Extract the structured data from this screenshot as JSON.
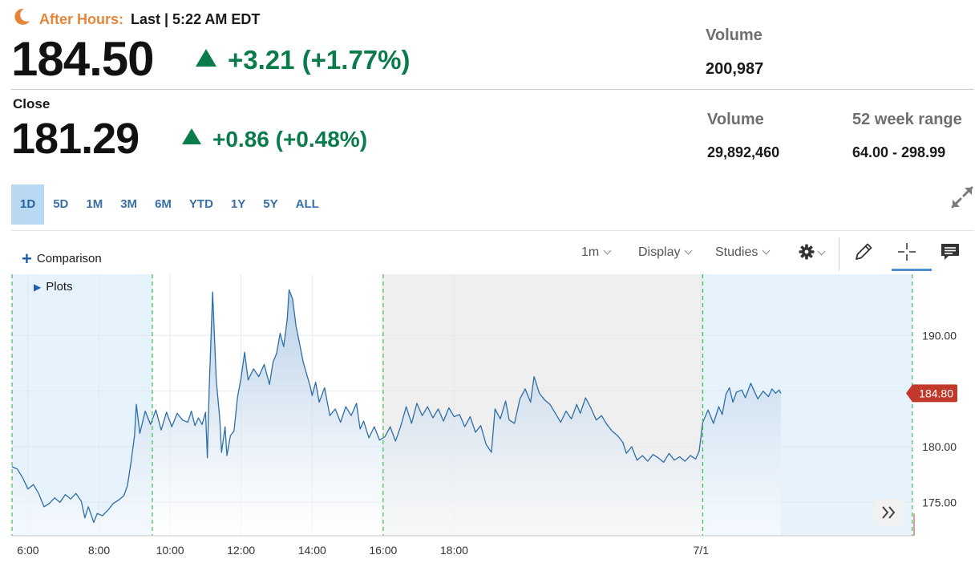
{
  "header": {
    "after_hours_label": "After Hours:",
    "last_time": "Last | 5:22 AM EDT",
    "after_hours_price": "184.50",
    "after_hours_change": "+3.21 (+1.77%)",
    "after_hours_volume_label": "Volume",
    "after_hours_volume": "200,987",
    "close_label": "Close",
    "close_price": "181.29",
    "close_change": "+0.86 (+0.48%)",
    "volume_label": "Volume",
    "volume": "29,892,460",
    "week52_label": "52 week range",
    "week52_range": "64.00 - 298.99",
    "icon": "moon-icon",
    "up_color": "#0a7b4b",
    "after_hours_color": "#e5853a"
  },
  "range_tabs": [
    "1D",
    "5D",
    "1M",
    "3M",
    "6M",
    "YTD",
    "1Y",
    "5Y",
    "ALL"
  ],
  "active_range": "1D",
  "toolbar": {
    "comparison": "Comparison",
    "interval": "1m",
    "display": "Display",
    "studies": "Studies",
    "icons": [
      "gear-icon",
      "pencil-icon",
      "crosshair-icon",
      "comment-icon",
      "expand-icon",
      "double-chevron-right-icon"
    ]
  },
  "plots_label": "Plots",
  "chart_data": {
    "type": "area",
    "x_tick_labels": [
      "6:00",
      "8:00",
      "10:00",
      "12:00",
      "14:00",
      "16:00",
      "18:00",
      "7/1"
    ],
    "y_tick_labels": [
      "190.00",
      "180.00",
      "175.00"
    ],
    "y_ticks": [
      190,
      180,
      175
    ],
    "ylim": [
      172.0,
      195.5
    ],
    "xlim": [
      5.55,
      30.95
    ],
    "current_price_label": "184.80",
    "current_price": 184.8,
    "line_color": "#2e6ea6",
    "label_color": "#c0392b",
    "session_markers": [
      5.55,
      9.5,
      16.0,
      25.0,
      30.9
    ],
    "shaded_sessions": [
      {
        "from": 5.55,
        "to": 9.5,
        "color": "#e6f2fc"
      },
      {
        "from": 16.0,
        "to": 25.0,
        "color": "#efefef"
      },
      {
        "from": 25.0,
        "to": 30.9,
        "color": "#e6f2fc"
      }
    ],
    "series": [
      {
        "points": [
          [
            5.55,
            178.2
          ],
          [
            5.7,
            178.0
          ],
          [
            5.85,
            177.2
          ],
          [
            6.0,
            176.2
          ],
          [
            6.15,
            176.6
          ],
          [
            6.3,
            175.8
          ],
          [
            6.45,
            174.6
          ],
          [
            6.6,
            174.9
          ],
          [
            6.75,
            175.4
          ],
          [
            6.9,
            175.0
          ],
          [
            7.05,
            175.7
          ],
          [
            7.2,
            175.3
          ],
          [
            7.35,
            175.8
          ],
          [
            7.5,
            175.1
          ],
          [
            7.6,
            173.6
          ],
          [
            7.7,
            174.6
          ],
          [
            7.85,
            173.2
          ],
          [
            7.95,
            174.0
          ],
          [
            8.1,
            173.8
          ],
          [
            8.25,
            174.3
          ],
          [
            8.4,
            174.9
          ],
          [
            8.55,
            175.2
          ],
          [
            8.7,
            175.6
          ],
          [
            8.8,
            176.5
          ],
          [
            8.9,
            178.6
          ],
          [
            9.0,
            181.0
          ],
          [
            9.05,
            183.8
          ],
          [
            9.15,
            181.2
          ],
          [
            9.3,
            183.2
          ],
          [
            9.45,
            182.0
          ],
          [
            9.6,
            183.3
          ],
          [
            9.75,
            181.5
          ],
          [
            9.9,
            183.1
          ],
          [
            10.05,
            181.8
          ],
          [
            10.2,
            183.0
          ],
          [
            10.35,
            182.4
          ],
          [
            10.5,
            182.2
          ],
          [
            10.6,
            183.2
          ],
          [
            10.7,
            181.9
          ],
          [
            10.8,
            182.6
          ],
          [
            10.9,
            182.0
          ],
          [
            11.0,
            183.1
          ],
          [
            11.05,
            179.0
          ],
          [
            11.1,
            185.0
          ],
          [
            11.2,
            193.9
          ],
          [
            11.3,
            186.0
          ],
          [
            11.4,
            182.5
          ],
          [
            11.45,
            179.5
          ],
          [
            11.55,
            181.8
          ],
          [
            11.6,
            179.2
          ],
          [
            11.7,
            181.0
          ],
          [
            11.8,
            181.4
          ],
          [
            11.9,
            184.5
          ],
          [
            12.0,
            186.2
          ],
          [
            12.1,
            188.5
          ],
          [
            12.2,
            186.0
          ],
          [
            12.35,
            187.0
          ],
          [
            12.5,
            186.3
          ],
          [
            12.65,
            187.4
          ],
          [
            12.8,
            185.6
          ],
          [
            12.9,
            187.6
          ],
          [
            13.0,
            188.4
          ],
          [
            13.1,
            190.2
          ],
          [
            13.2,
            189.0
          ],
          [
            13.3,
            191.5
          ],
          [
            13.35,
            194.1
          ],
          [
            13.45,
            193.3
          ],
          [
            13.55,
            190.8
          ],
          [
            13.65,
            189.2
          ],
          [
            13.75,
            187.6
          ],
          [
            13.85,
            186.5
          ],
          [
            13.95,
            185.4
          ],
          [
            14.0,
            184.6
          ],
          [
            14.1,
            185.8
          ],
          [
            14.2,
            184.0
          ],
          [
            14.35,
            185.3
          ],
          [
            14.5,
            182.8
          ],
          [
            14.65,
            183.4
          ],
          [
            14.8,
            182.2
          ],
          [
            14.95,
            183.6
          ],
          [
            15.1,
            182.8
          ],
          [
            15.25,
            183.9
          ],
          [
            15.35,
            181.6
          ],
          [
            15.45,
            182.3
          ],
          [
            15.6,
            180.8
          ],
          [
            15.75,
            181.8
          ],
          [
            15.9,
            180.6
          ],
          [
            16.05,
            180.9
          ],
          [
            16.2,
            181.8
          ],
          [
            16.35,
            180.5
          ],
          [
            16.5,
            181.9
          ],
          [
            16.65,
            183.6
          ],
          [
            16.8,
            182.1
          ],
          [
            16.95,
            183.9
          ],
          [
            17.1,
            182.8
          ],
          [
            17.25,
            183.6
          ],
          [
            17.4,
            182.6
          ],
          [
            17.55,
            183.4
          ],
          [
            17.7,
            182.3
          ],
          [
            17.85,
            183.5
          ],
          [
            18.0,
            182.7
          ],
          [
            18.15,
            182.9
          ],
          [
            18.3,
            181.8
          ],
          [
            18.45,
            182.7
          ],
          [
            18.6,
            181.3
          ],
          [
            18.75,
            181.9
          ],
          [
            18.9,
            180.2
          ],
          [
            19.05,
            179.5
          ],
          [
            19.15,
            183.4
          ],
          [
            19.3,
            182.5
          ],
          [
            19.45,
            184.1
          ],
          [
            19.55,
            182.4
          ],
          [
            19.7,
            182.1
          ],
          [
            19.85,
            184.3
          ],
          [
            20.0,
            185.2
          ],
          [
            20.15,
            184.0
          ],
          [
            20.25,
            186.3
          ],
          [
            20.4,
            184.8
          ],
          [
            20.55,
            184.2
          ],
          [
            20.7,
            183.8
          ],
          [
            20.85,
            183.0
          ],
          [
            21.0,
            182.2
          ],
          [
            21.15,
            183.2
          ],
          [
            21.3,
            182.5
          ],
          [
            21.45,
            183.8
          ],
          [
            21.55,
            183.0
          ],
          [
            21.7,
            184.4
          ],
          [
            21.85,
            183.5
          ],
          [
            22.0,
            182.4
          ],
          [
            22.15,
            182.8
          ],
          [
            22.3,
            182.0
          ],
          [
            22.45,
            181.4
          ],
          [
            22.6,
            181.0
          ],
          [
            22.75,
            180.4
          ],
          [
            22.85,
            179.4
          ],
          [
            23.0,
            180.0
          ],
          [
            23.15,
            178.8
          ],
          [
            23.3,
            179.2
          ],
          [
            23.45,
            178.7
          ],
          [
            23.6,
            179.3
          ],
          [
            23.75,
            179.0
          ],
          [
            23.9,
            178.6
          ],
          [
            24.05,
            179.4
          ],
          [
            24.2,
            178.8
          ],
          [
            24.35,
            179.1
          ],
          [
            24.5,
            178.7
          ],
          [
            24.65,
            179.2
          ],
          [
            24.8,
            178.9
          ],
          [
            24.9,
            179.6
          ],
          [
            25.0,
            182.2
          ],
          [
            25.15,
            183.3
          ],
          [
            25.3,
            182.1
          ],
          [
            25.45,
            183.6
          ],
          [
            25.55,
            182.9
          ],
          [
            25.65,
            184.7
          ],
          [
            25.75,
            185.3
          ],
          [
            25.85,
            184.0
          ],
          [
            25.95,
            184.9
          ],
          [
            26.1,
            185.1
          ],
          [
            26.2,
            184.4
          ],
          [
            26.35,
            185.7
          ],
          [
            26.45,
            185.0
          ],
          [
            26.55,
            184.3
          ],
          [
            26.7,
            185.0
          ],
          [
            26.85,
            184.5
          ],
          [
            26.95,
            185.2
          ],
          [
            27.05,
            184.8
          ],
          [
            27.15,
            185.1
          ],
          [
            27.2,
            184.8
          ]
        ]
      }
    ]
  }
}
